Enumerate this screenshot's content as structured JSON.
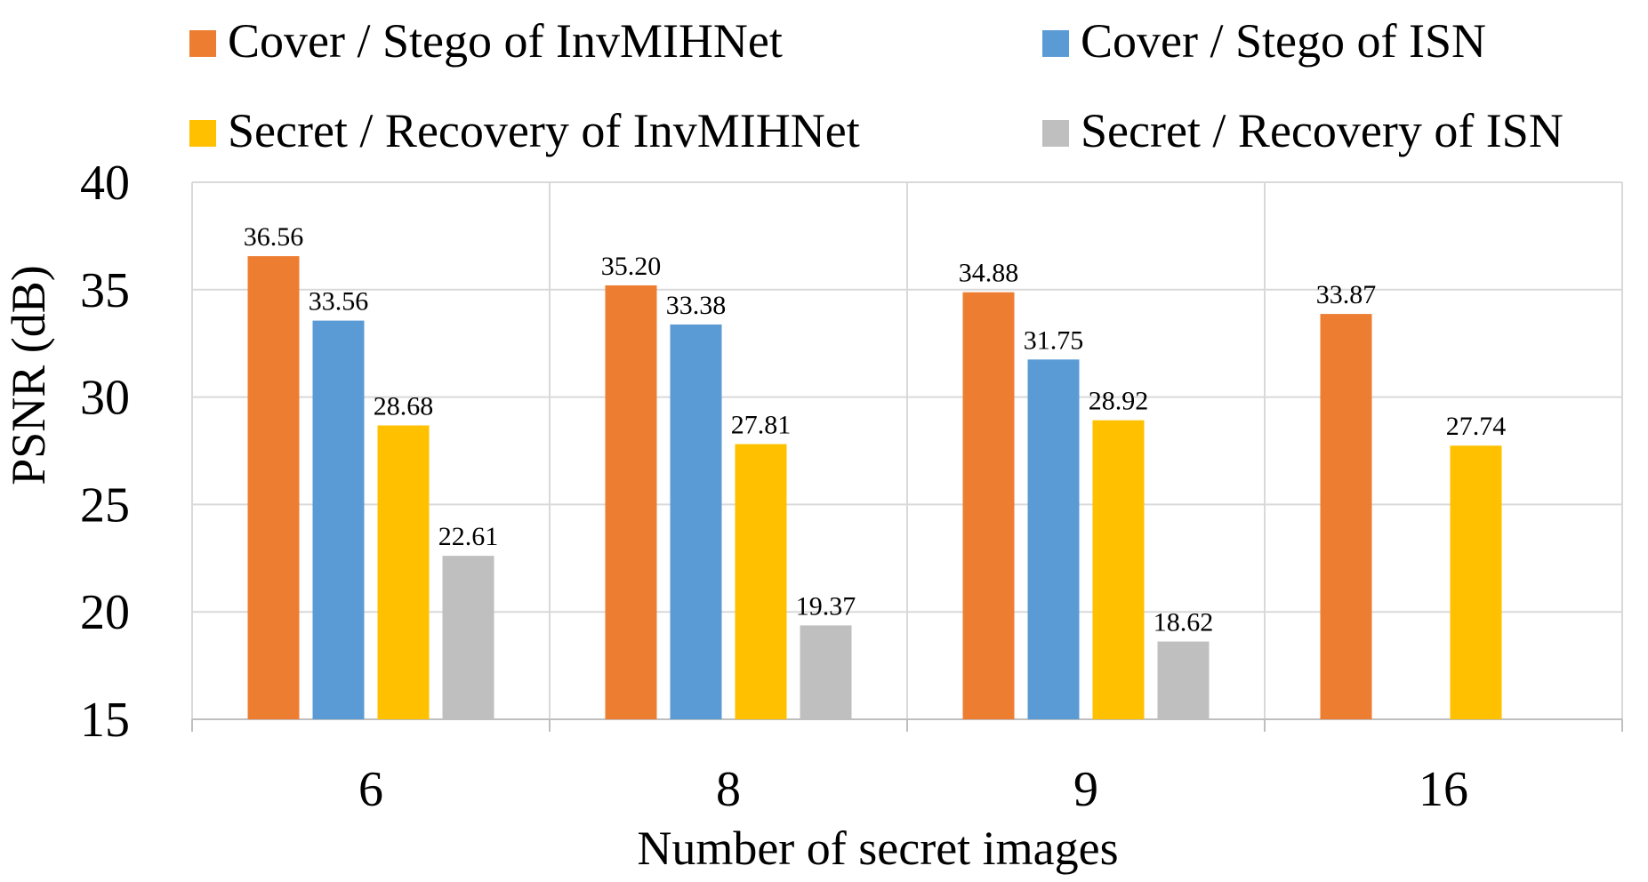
{
  "chart_data": {
    "type": "bar",
    "categories": [
      "6",
      "8",
      "9",
      "16"
    ],
    "series": [
      {
        "name": "Cover / Stego of InvMIHNet",
        "color": "#ED7D31",
        "values": [
          36.56,
          35.2,
          34.88,
          33.87
        ],
        "labels": [
          "36.56",
          "35.20",
          "34.88",
          "33.87"
        ]
      },
      {
        "name": "Cover / Stego of ISN",
        "color": "#5B9BD5",
        "values": [
          33.56,
          33.38,
          31.75,
          null
        ],
        "labels": [
          "33.56",
          "33.38",
          "31.75",
          ""
        ]
      },
      {
        "name": "Secret / Recovery of InvMIHNet",
        "color": "#FFC000",
        "values": [
          28.68,
          27.81,
          28.92,
          27.74
        ],
        "labels": [
          "28.68",
          "27.81",
          "28.92",
          "27.74"
        ]
      },
      {
        "name": "Secret / Recovery of ISN",
        "color": "#BFBFBF",
        "values": [
          22.61,
          19.37,
          18.62,
          null
        ],
        "labels": [
          "22.61",
          "19.37",
          "18.62",
          ""
        ]
      }
    ],
    "title": "",
    "xlabel": "Number of secret images",
    "ylabel": "PSNR (dB)",
    "ylim": [
      15,
      40
    ],
    "yticks": [
      "15",
      "20",
      "25",
      "30",
      "35",
      "40"
    ],
    "grid": true,
    "legend_position": "top"
  }
}
